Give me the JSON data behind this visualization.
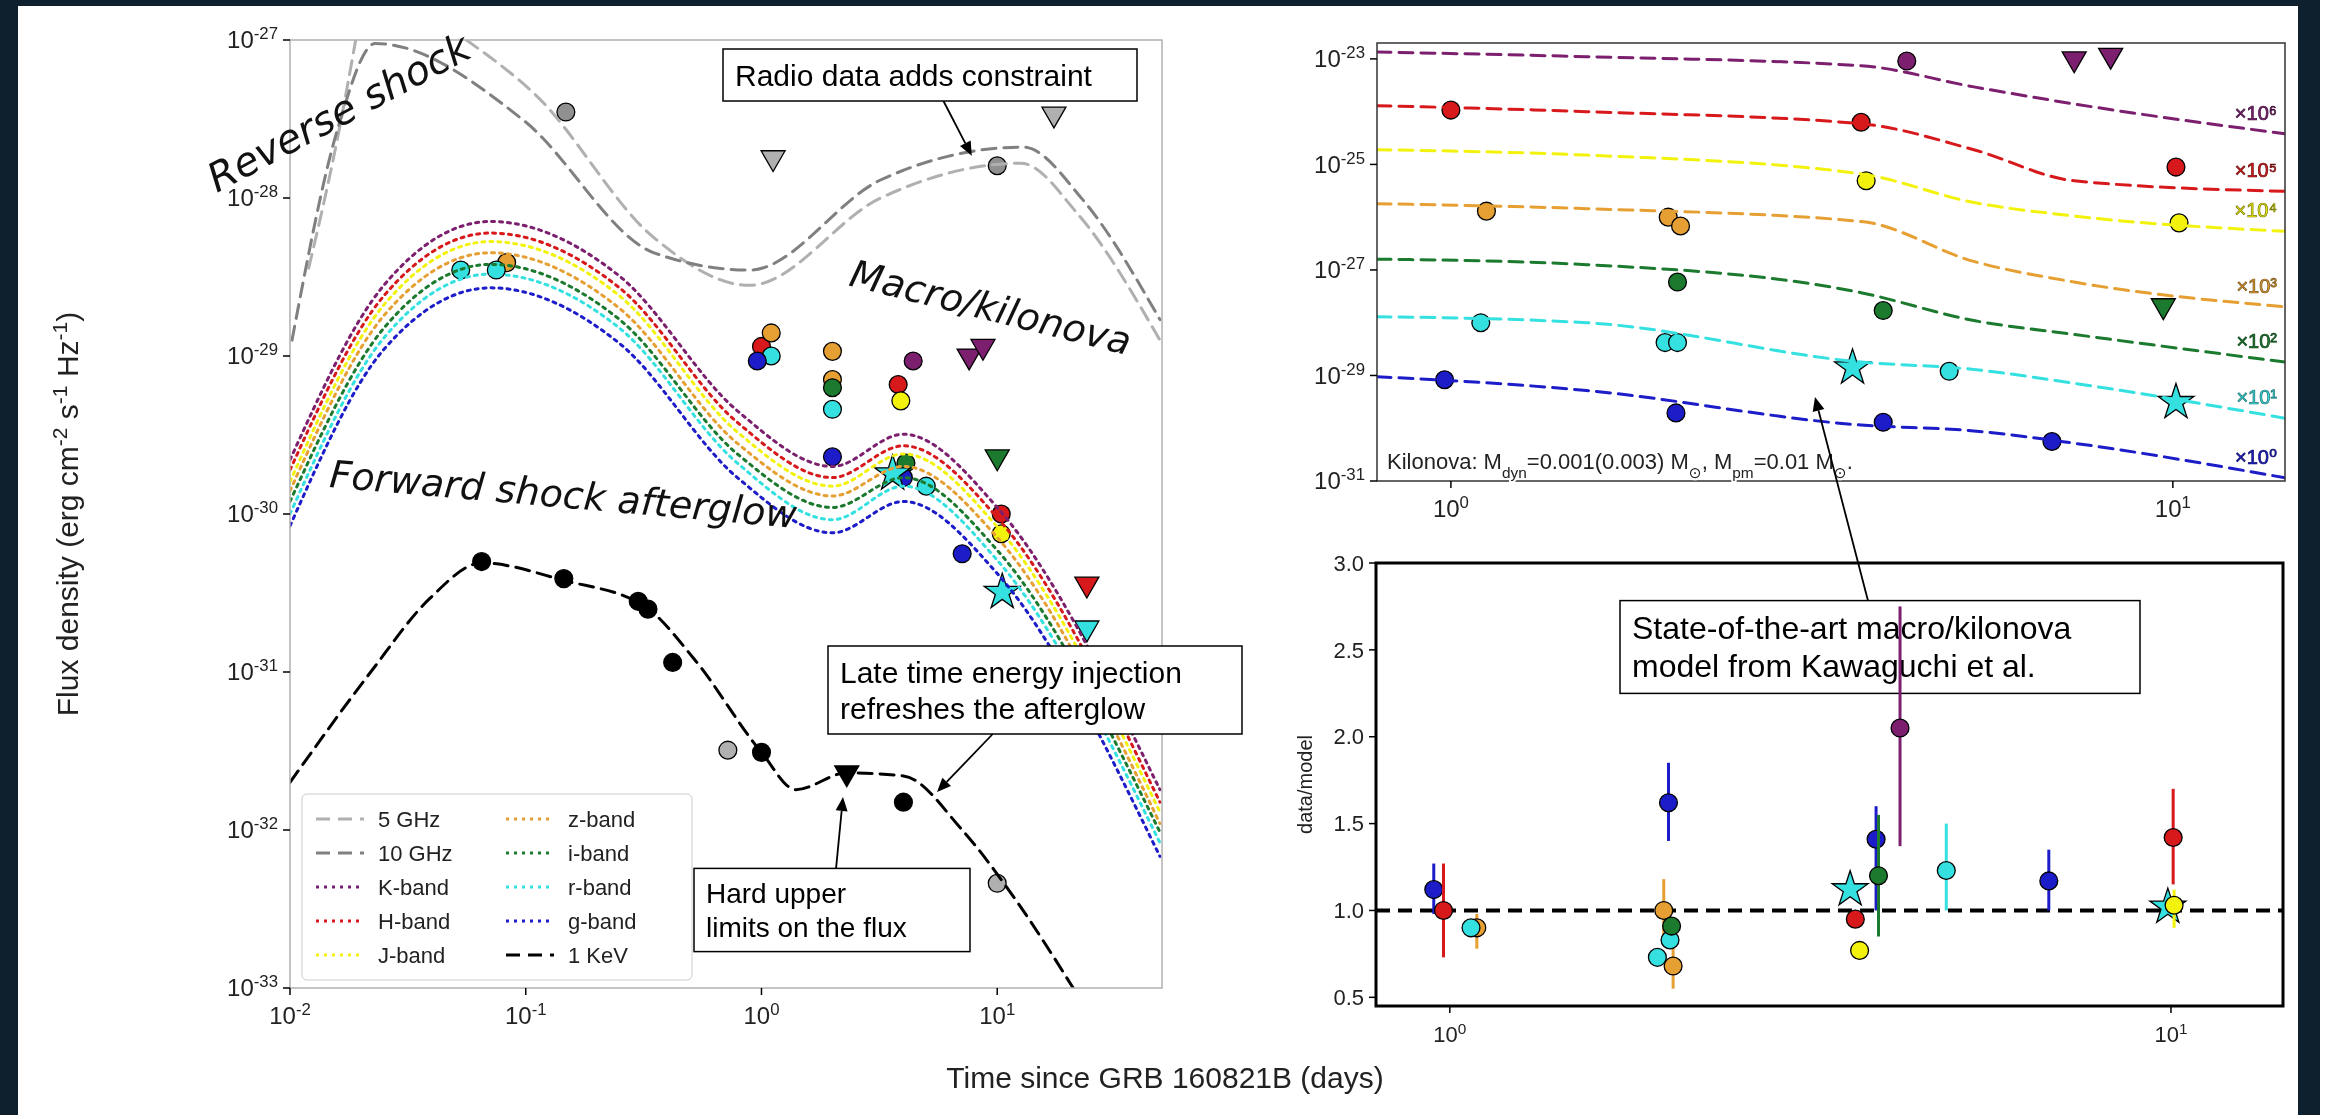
{
  "chart_data": [
    {
      "type": "line",
      "log": "xy",
      "xlabel": "Time since GRB 160821B (days)",
      "ylabel": "Flux density (erg cm$^{-2}$ s$^{-1}$ Hz$^{-1}$)",
      "legend": "bottom left",
      "xlim": [
        0.01,
        50
      ],
      "ylim": [
        1e-33,
        1e-27
      ],
      "xticks": [
        {
          "value": 0.01,
          "label": "10$^{-2}$"
        },
        {
          "value": 0.1,
          "label": "10$^{-1}$"
        },
        {
          "value": 1,
          "label": "10$^{0}$"
        },
        {
          "value": 10,
          "label": "10$^{1}$"
        }
      ],
      "yticks": [
        {
          "value": 1e-33,
          "label": "10$^{-33}$"
        },
        {
          "value": 1e-32,
          "label": "10$^{-32}$"
        },
        {
          "value": 1e-31,
          "label": "10$^{-31}$"
        },
        {
          "value": 1e-30,
          "label": "10$^{-30}$"
        },
        {
          "value": 1e-29,
          "label": "10$^{-29}$"
        },
        {
          "value": 1e-28,
          "label": "10$^{-28}$"
        },
        {
          "value": 1e-27,
          "label": "10$^{-27}$"
        }
      ],
      "series": [
        {
          "name": "5 GHz",
          "color": "#b0b0b0",
          "line_style": "dashed",
          "x": [
            0.012,
            0.016,
            0.019,
            0.03,
            0.056,
            0.11,
            0.35,
            0.89,
            3.2,
            12.6,
            22,
            49
          ],
          "values": [
            3.6e-29,
            2.5e-28,
            1e-27,
            null,
            1e-27,
            4.5e-28,
            5.6e-29,
            2.8e-29,
            1e-28,
            1.66e-28,
            7.9e-29,
            1.26e-29
          ]
        },
        {
          "name": "10 GHz",
          "color": "#808080",
          "line_style": "dashed",
          "x": [
            0.0102,
            0.016,
            0.023,
            0.098,
            0.35,
            0.89,
            3.2,
            12.9,
            23,
            49
          ],
          "values": [
            1.26e-29,
            2.8e-28,
            9.5e-28,
            3.1e-28,
            4.5e-29,
            3.5e-29,
            1.3e-28,
            2.1e-28,
            9.8e-29,
            1.7e-29
          ]
        },
        {
          "name": "K-band",
          "color": "#7b1f6e",
          "line_style": "dotted",
          "x": [
            0.01,
            0.025,
            0.071,
            0.25,
            0.79,
            2.0,
            4.0,
            10,
            49
          ],
          "values": [
            2.2e-30,
            2.8e-29,
            7.1e-29,
            3.2e-29,
            4.5e-30,
            2e-30,
            3.2e-30,
            1.1e-30,
            1.8e-32
          ]
        },
        {
          "name": "H-band",
          "color": "#d7191c",
          "line_style": "dotted",
          "x": [
            0.01,
            0.025,
            0.071,
            0.25,
            0.79,
            2.0,
            4.0,
            10,
            49
          ],
          "values": [
            1.9e-30,
            2.4e-29,
            6e-29,
            2.7e-29,
            3.8e-30,
            1.7e-30,
            2.7e-30,
            9.5e-31,
            1.5e-32
          ]
        },
        {
          "name": "J-band",
          "color": "#f2f20d",
          "line_style": "dotted",
          "x": [
            0.01,
            0.025,
            0.071,
            0.25,
            0.79,
            2.0,
            4.0,
            10,
            49
          ],
          "values": [
            1.6e-30,
            2.1e-29,
            5.3e-29,
            2.4e-29,
            3.3e-30,
            1.5e-30,
            2.4e-30,
            8.3e-31,
            1.3e-32
          ]
        },
        {
          "name": "z-band",
          "color": "#e69f32",
          "line_style": "dotted",
          "x": [
            0.01,
            0.025,
            0.071,
            0.25,
            0.79,
            2.0,
            4.0,
            10,
            49
          ],
          "values": [
            1.4e-30,
            1.8e-29,
            4.5e-29,
            2e-29,
            2.8e-30,
            1.3e-30,
            2e-30,
            7.1e-31,
            1.1e-32
          ]
        },
        {
          "name": "i-band",
          "color": "#1b7a2e",
          "line_style": "dotted",
          "x": [
            0.01,
            0.025,
            0.071,
            0.25,
            0.79,
            2.0,
            4.0,
            10,
            49
          ],
          "values": [
            1.2e-30,
            1.5e-29,
            3.8e-29,
            1.7e-29,
            2.4e-30,
            1.1e-30,
            1.7e-30,
            5.9e-31,
            9.7e-33
          ]
        },
        {
          "name": "r-band",
          "color": "#35e0e0",
          "line_style": "dotted",
          "x": [
            0.01,
            0.025,
            0.071,
            0.25,
            0.79,
            2.0,
            4.0,
            10,
            49
          ],
          "values": [
            1e-30,
            1.3e-29,
            3.3e-29,
            1.5e-29,
            2.1e-30,
            9.2e-31,
            1.5e-30,
            5.1e-31,
            8.3e-33
          ]
        },
        {
          "name": "g-band",
          "color": "#1c1cc8",
          "line_style": "dotted",
          "x": [
            0.01,
            0.025,
            0.071,
            0.25,
            0.79,
            2.0,
            4.0,
            10,
            49
          ],
          "values": [
            8.4e-31,
            1.1e-29,
            2.7e-29,
            1.2e-29,
            1.7e-30,
            7.6e-31,
            1.2e-30,
            4.2e-31,
            6.8e-33
          ]
        },
        {
          "name": "1 KeV",
          "color": "#000000",
          "line_style": "dashed",
          "x": [
            0.01,
            0.022,
            0.039,
            0.065,
            0.145,
            0.32,
            0.52,
            1.0,
            1.4,
            2.3,
            4.0,
            7.1,
            12,
            21
          ],
          "values": [
            2e-32,
            1e-31,
            2.9e-31,
            4.9e-31,
            3.8e-31,
            2.6e-31,
            1.2e-31,
            3.1e-32,
            1.8e-32,
            2.3e-32,
            2.2e-32,
            1e-32,
            3.6e-33,
            1e-33
          ]
        },
        {
          "type": "scatter",
          "marker": "circle",
          "x": [
            4.4,
            1.0,
            3.8,
            10.4,
            3.9,
            10.4,
            0.083,
            1.1,
            2.0,
            2.0,
            2.0,
            4.1,
            0.053,
            0.075,
            1.1,
            2.0,
            5.0,
            0.96,
            2.0,
            4.0,
            7.1,
            0.065,
            0.145,
            0.3,
            0.33,
            0.42,
            1.0,
            4.0,
            0.148,
            10.0,
            0.72,
            10.0
          ],
          "values": [
            9.3e-30,
            1.15e-29,
            6.6e-30,
            1e-30,
            5.2e-30,
            7.5e-31,
            3.9e-29,
            1.4e-29,
            1.07e-29,
            7.1e-30,
            6.3e-30,
            2.1e-30,
            3.5e-29,
            3.5e-29,
            1e-29,
            4.6e-30,
            1.5e-30,
            9.3e-30,
            2.3e-30,
            1.7e-30,
            5.6e-31,
            5e-31,
            3.9e-31,
            2.8e-31,
            2.5e-31,
            1.15e-31,
            3.1e-32,
            1.5e-32,
            3.5e-28,
            1.6e-28,
            3.2e-32,
            4.6e-33
          ],
          "colors": [
            "#7b1f6e",
            "#d7191c",
            "#d7191c",
            "#d7191c",
            "#f2f20d",
            "#f2f20d",
            "#e69f32",
            "#e69f32",
            "#e69f32",
            "#e69f32",
            "#1b7a2e",
            "#1b7a2e",
            "#35e0e0",
            "#35e0e0",
            "#35e0e0",
            "#35e0e0",
            "#35e0e0",
            "#1c1cc8",
            "#1c1cc8",
            "#1c1cc8",
            "#1c1cc8",
            "#000000",
            "#000000",
            "#000000",
            "#000000",
            "#000000",
            "#000000",
            "#000000",
            "#909090",
            "#909090",
            "#b0b0b0",
            "#b0b0b0"
          ]
        },
        {
          "type": "scatter",
          "marker": "triangle",
          "x": [
            7.6,
            8.7,
            24,
            10.0,
            24,
            2.3,
            1.12,
            17.4
          ],
          "values": [
            1e-29,
            1.15e-29,
            3.6e-31,
            2.3e-30,
            1.9e-31,
            2.3e-32,
            1.8e-28,
            3.4e-28
          ],
          "colors": [
            "#7b1f6e",
            "#7b1f6e",
            "#d7191c",
            "#1b7a2e",
            "#35e0e0",
            "#000000",
            "#b0b0b0",
            "#b0b0b0"
          ]
        },
        {
          "type": "scatter",
          "marker": "star",
          "color": "#35e0e0",
          "x": [
            3.6,
            10.5
          ],
          "values": [
            1.8e-30,
            3.2e-31
          ]
        }
      ],
      "annotations": [
        "Reverse shock",
        "Macro/kilonova",
        "Forward shock afterglow",
        {
          "text": "Radio data adds constraint",
          "x": 7.8,
          "y": 1.85e-28
        },
        "Late time energy injection refreshes the afterglow",
        "Hard upper limits on the flux"
      ]
    },
    {
      "type": "line",
      "log": "xy",
      "line_style": "dashed",
      "xlim": [
        0.79,
        14.3
      ],
      "ylim": [
        1e-31,
        2e-23
      ],
      "xticks": [
        {
          "value": 1,
          "label": "10$^{0}$"
        },
        {
          "value": 10,
          "label": "10$^{1}$"
        }
      ],
      "yticks": [
        {
          "value": 1e-31,
          "label": "10$^{-31}$"
        },
        {
          "value": 1e-29,
          "label": "10$^{-29}$"
        },
        {
          "value": 1e-27,
          "label": "10$^{-27}$"
        },
        {
          "value": 1e-25,
          "label": "10$^{-25}$"
        },
        {
          "value": 1e-23,
          "label": "10$^{-23}$"
        }
      ],
      "x": [
        0.79,
        1.54,
        3.7,
        5.3,
        7.3,
        14.3
      ],
      "series": [
        {
          "name": "×10⁶",
          "color": "#7b1f6e",
          "values": [
            1.35e-23,
            1.1e-23,
            7.4e-24,
            2.95e-24,
            1.4e-24,
            3.8e-25
          ]
        },
        {
          "name": "×10⁵",
          "color": "#d7191c",
          "values": [
            1.3e-24,
            1e-24,
            5.9e-25,
            1.9e-25,
            4.9e-26,
            3.1e-26
          ]
        },
        {
          "name": "×10⁴",
          "color": "#f2f20d",
          "values": [
            1.9e-25,
            1.5e-25,
            6.6e-26,
            1.9e-26,
            1.05e-26,
            5.4e-27
          ]
        },
        {
          "name": "×10³",
          "color": "#e69f32",
          "values": [
            1.8e-26,
            1.45e-26,
            8.3e-27,
            1.45e-27,
            5.9e-28,
            2e-28
          ]
        },
        {
          "name": "×10²",
          "color": "#1b7a2e",
          "values": [
            1.6e-27,
            1.26e-27,
            3.7e-28,
            1.1e-28,
            6e-29,
            1.8e-29
          ]
        },
        {
          "name": "×10¹",
          "color": "#35e0e0",
          "values": [
            1.3e-28,
            1e-28,
            1.8e-29,
            1.3e-29,
            7.1e-30,
            1.55e-30
          ]
        },
        {
          "name": "×10⁰",
          "color": "#1c1cc8",
          "values": [
            9.5e-30,
            5.2e-30,
            1.15e-30,
            8.9e-31,
            5.2e-31,
            1.15e-31
          ]
        },
        {
          "type": "scatter",
          "marker": "circle",
          "x": [
            4.28,
            1.0,
            3.7,
            10.1,
            3.76,
            10.2,
            1.12,
            2.0,
            2.08,
            2.06,
            3.97,
            1.1,
            1.98,
            2.06,
            4.9,
            0.98,
            2.05,
            3.97,
            6.8
          ],
          "values": [
            9.1e-24,
            1.07e-24,
            6.3e-25,
            8.9e-26,
            4.9e-26,
            7.8e-27,
            1.3e-26,
            1e-26,
            6.8e-27,
            5.9e-28,
            1.7e-28,
            1e-28,
            4.2e-29,
            4.2e-29,
            1.2e-29,
            8.3e-30,
            1.95e-30,
            1.3e-30,
            5.6e-31
          ],
          "colors": [
            "#7b1f6e",
            "#d7191c",
            "#d7191c",
            "#d7191c",
            "#f2f20d",
            "#f2f20d",
            "#e69f32",
            "#e69f32",
            "#e69f32",
            "#1b7a2e",
            "#1b7a2e",
            "#35e0e0",
            "#35e0e0",
            "#35e0e0",
            "#35e0e0",
            "#1c1cc8",
            "#1c1cc8",
            "#1c1cc8",
            "#1c1cc8"
          ]
        },
        {
          "type": "scatter",
          "marker": "triangle",
          "x": [
            7.3,
            8.2,
            9.7
          ],
          "values": [
            1e-23,
            1.17e-23,
            2.1e-28
          ],
          "colors": [
            "#7b1f6e",
            "#7b1f6e",
            "#1b7a2e"
          ]
        },
        {
          "type": "scatter",
          "marker": "star",
          "color": "#35e0e0",
          "x": [
            3.6,
            10.1
          ],
          "values": [
            1.4e-29,
            3.1e-30
          ]
        }
      ],
      "annotations": [
        "Kilonova: M$_{dyn}$=0.001(0.003) M$_{⊙}$, M$_{pm}$=0.01 M$_{⊙}$.",
        "State-of-the-art macro/kilonova model from Kawaguchi et al."
      ]
    },
    {
      "type": "scatter",
      "log": "x",
      "ylabel": "data/model",
      "marker": "circle",
      "xlim": [
        0.79,
        14.3
      ],
      "ylim": [
        0.45,
        3.0
      ],
      "xticks": [
        {
          "value": 1,
          "label": "10$^{0}$"
        },
        {
          "value": 10,
          "label": "10$^{1}$"
        }
      ],
      "yticks": [
        0.5,
        {
          "value": 1,
          "label": "1.0"
        },
        1.5,
        {
          "value": 2,
          "label": "2.0"
        },
        2.5,
        {
          "value": 3,
          "label": "3.0"
        }
      ],
      "ref_lines": [
        {
          "axis": "y",
          "value": 1,
          "color": "#000000",
          "line_style": "dashed"
        }
      ],
      "series": [
        {
          "color": "#1c1cc8",
          "x": [
            0.95,
            2.01,
            3.9,
            6.77
          ],
          "values": [
            1.12,
            1.62,
            1.41,
            1.17
          ],
          "errors": [
            [
              0.98,
              1.27
            ],
            [
              1.4,
              1.85
            ],
            [
              1.0,
              1.6
            ],
            [
              1.0,
              1.35
            ]
          ]
        },
        {
          "color": "#d7191c",
          "x": [
            0.98,
            3.65,
            10.07
          ],
          "values": [
            1.0,
            0.95,
            1.42
          ],
          "errors": [
            [
              0.73,
              1.27
            ],
            null,
            [
              1.15,
              1.7
            ]
          ]
        },
        {
          "color": "#e69f32",
          "x": [
            1.09,
            1.98,
            2.04
          ],
          "values": [
            0.9,
            1.0,
            0.68
          ],
          "errors": [
            [
              0.78,
              0.98
            ],
            [
              0.85,
              1.18
            ],
            [
              0.55,
              0.8
            ]
          ]
        },
        {
          "color": "#35e0e0",
          "x": [
            1.07,
            1.94,
            2.02,
            4.88
          ],
          "values": [
            0.9,
            0.73,
            0.83,
            1.23
          ],
          "errors": [
            null,
            null,
            null,
            [
              1.0,
              1.5
            ]
          ]
        },
        {
          "color": "#35e0e0",
          "marker": "star",
          "x": [
            3.59,
            9.9
          ],
          "values": [
            1.12,
            1.02
          ]
        },
        {
          "color": "#1b7a2e",
          "x": [
            2.03,
            3.93
          ],
          "values": [
            0.91,
            1.2
          ],
          "errors": [
            null,
            [
              0.85,
              1.55
            ]
          ]
        },
        {
          "color": "#f2f20d",
          "x": [
            3.7,
            10.1
          ],
          "values": [
            0.77,
            1.03
          ],
          "errors": [
            null,
            [
              0.9,
              1.12
            ]
          ]
        },
        {
          "color": "#7b1f6e",
          "x": [
            4.21
          ],
          "values": [
            2.05
          ],
          "errors": [
            [
              1.37,
              2.75
            ]
          ]
        }
      ]
    }
  ]
}
